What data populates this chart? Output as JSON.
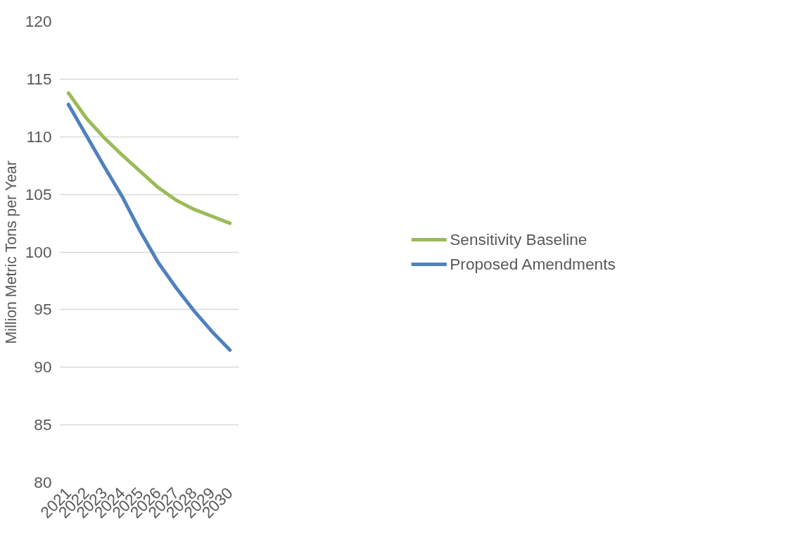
{
  "chart_data": {
    "type": "line",
    "ylabel": "Million Metric Tons per Year",
    "categories": [
      "2021",
      "2022",
      "2023",
      "2024",
      "2025",
      "2026",
      "2027",
      "2028",
      "2029",
      "2030"
    ],
    "series": [
      {
        "name": "Sensitivity Baseline",
        "color": "#9bbb59",
        "values": [
          113.8,
          111.6,
          109.9,
          108.4,
          107.0,
          105.6,
          104.5,
          103.7,
          103.1,
          102.5
        ]
      },
      {
        "name": "Proposed Amendments",
        "color": "#4f81bd",
        "values": [
          112.8,
          110.1,
          107.4,
          104.8,
          101.8,
          99.1,
          96.9,
          94.9,
          93.1,
          91.5
        ]
      }
    ],
    "ylim": [
      80,
      120
    ],
    "yticks": [
      80,
      85,
      90,
      95,
      100,
      105,
      110,
      115,
      120
    ],
    "grid": "y",
    "legend": "right",
    "marker": "none",
    "line_style": "solid"
  }
}
